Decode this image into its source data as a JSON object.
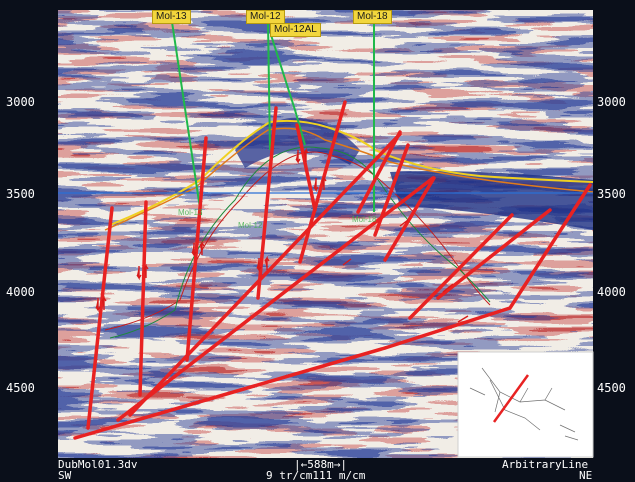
{
  "time_axis": {
    "left_ticks": [
      "3000",
      "3500",
      "4000",
      "4500"
    ],
    "right_ticks": [
      "3000",
      "3500",
      "4000",
      "4500"
    ]
  },
  "wells": [
    "Mol-13",
    "Mol-12",
    "Mol-12AL",
    "Mol-18"
  ],
  "footer": {
    "dataset": "DubMol01.3dv",
    "left_dir": "SW",
    "right_dir": "NE",
    "line_type": "ArbitraryLine",
    "scale_bar": "|←588m→|",
    "scale_text": "9 tr/cm111 m/cm"
  },
  "colors": {
    "background": "#0a0f1a",
    "fault": "#e82222",
    "horizon": "#f0d020",
    "well_path": "#1fb84a",
    "time_line": "#2a6fd6"
  }
}
